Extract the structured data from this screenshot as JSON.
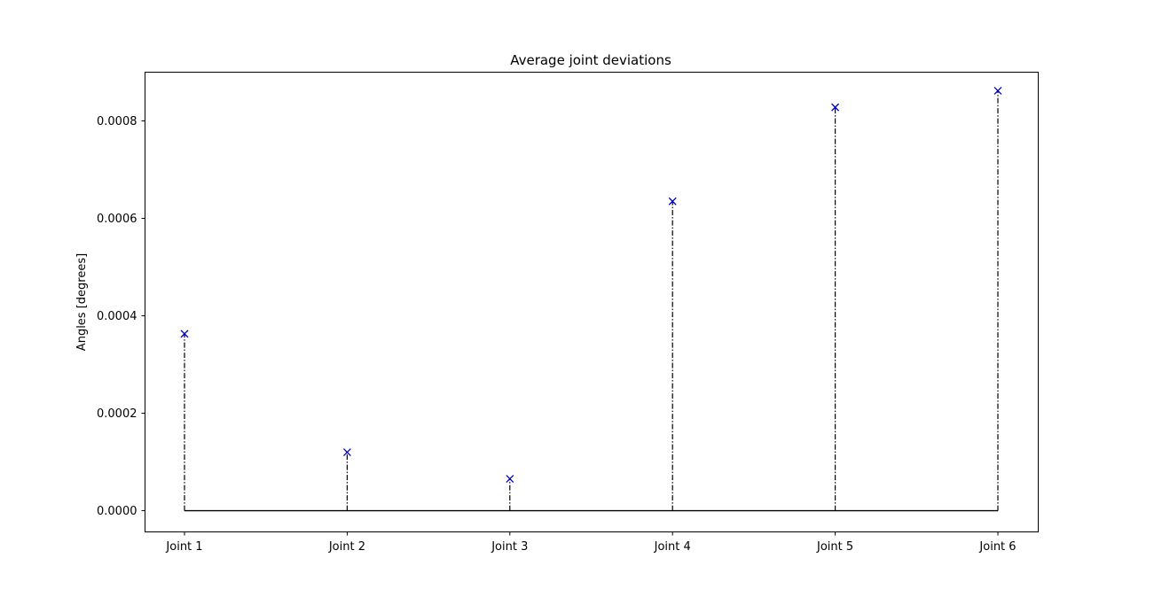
{
  "chart_data": {
    "type": "stem",
    "title": "Average joint deviations",
    "xlabel": "",
    "ylabel": "Angles [degrees]",
    "categories": [
      "Joint 1",
      "Joint 2",
      "Joint 3",
      "Joint 4",
      "Joint 5",
      "Joint 6"
    ],
    "values": [
      0.000363,
      0.00012,
      6.55e-05,
      0.000635,
      0.000828,
      0.000862
    ],
    "ylim": [
      -4.35e-05,
      0.0009
    ],
    "yticks": [
      0,
      0.0002,
      0.0004,
      0.0006,
      0.0008
    ],
    "ytick_labels": [
      "0.0000",
      "0.0002",
      "0.0004",
      "0.0006",
      "0.0008"
    ],
    "grid": false,
    "marker": "x",
    "stem_style": "dash-dot",
    "baseline": 0,
    "colors": {
      "marker": "#0000cc",
      "stem": "#000000",
      "baseline": "#000000",
      "axes": "#000000"
    }
  }
}
